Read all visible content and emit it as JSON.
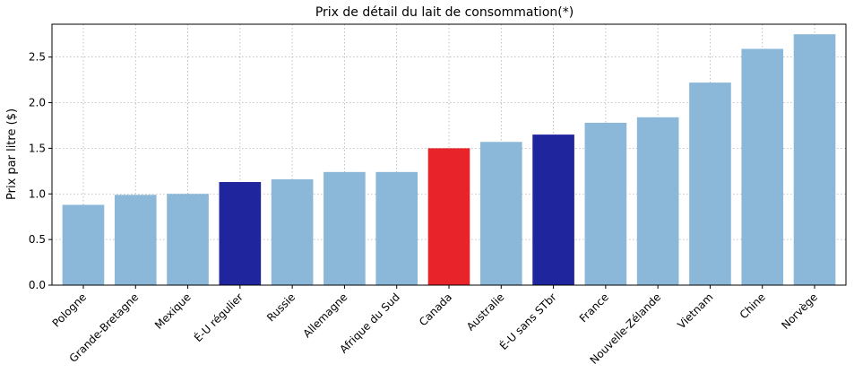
{
  "chart_data": {
    "type": "bar",
    "title": "Prix de détail du lait de consommation(*)",
    "xlabel": "",
    "ylabel": "Prix par litre ($)",
    "categories": [
      "Pologne",
      "Grande-Bretagne",
      "Mexique",
      "É-U régulier",
      "Russie",
      "Allemagne",
      "Afrique du Sud",
      "Canada",
      "Australie",
      "É-U sans STbr",
      "France",
      "Nouvelle-Zélande",
      "Vietnam",
      "Chine",
      "Norvège"
    ],
    "values": [
      0.88,
      0.99,
      1.0,
      1.13,
      1.16,
      1.24,
      1.24,
      1.5,
      1.57,
      1.65,
      1.78,
      1.84,
      2.22,
      2.59,
      2.75
    ],
    "colors": [
      "#8bb8d8",
      "#8bb8d8",
      "#8bb8d8",
      "#1f259c",
      "#8bb8d8",
      "#8bb8d8",
      "#8bb8d8",
      "#e8232a",
      "#8bb8d8",
      "#1f259c",
      "#8bb8d8",
      "#8bb8d8",
      "#8bb8d8",
      "#8bb8d8",
      "#8bb8d8"
    ],
    "yticks": [
      "0.0",
      "0.5",
      "1.0",
      "1.5",
      "2.0",
      "2.5"
    ],
    "ylim": [
      0,
      2.86
    ],
    "grid": true
  }
}
